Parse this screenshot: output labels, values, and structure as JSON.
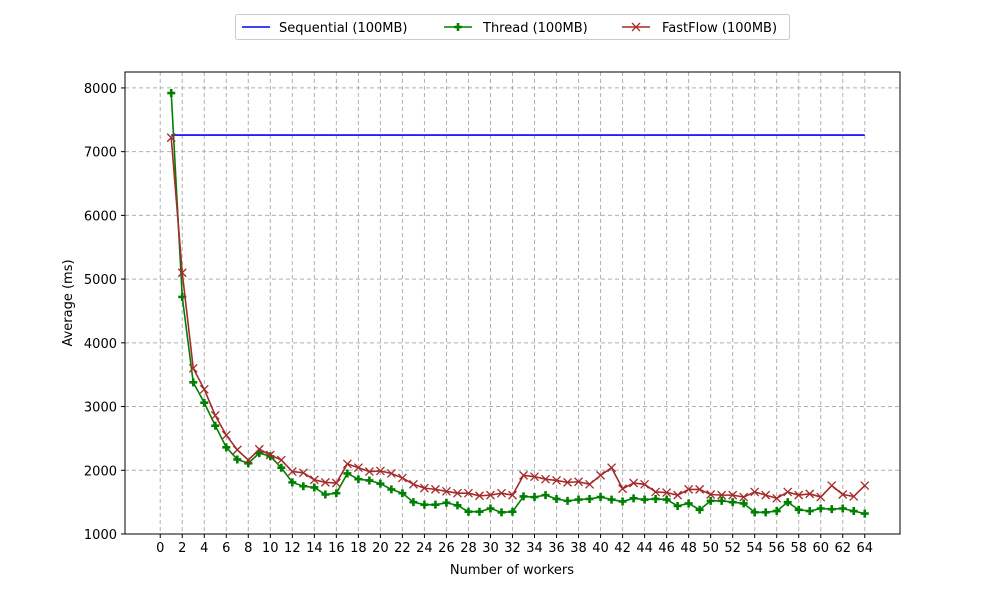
{
  "chart_data": {
    "type": "line",
    "title": "",
    "xlabel": "Number of workers",
    "ylabel": "Average (ms)",
    "xlim": [
      -3.2,
      67.2
    ],
    "ylim": [
      1000,
      8250
    ],
    "x_ticks": [
      0,
      2,
      4,
      6,
      8,
      10,
      12,
      14,
      16,
      18,
      20,
      22,
      24,
      26,
      28,
      30,
      32,
      34,
      36,
      38,
      40,
      42,
      44,
      46,
      48,
      50,
      52,
      54,
      56,
      58,
      60,
      62,
      64
    ],
    "y_ticks": [
      1000,
      2000,
      3000,
      4000,
      5000,
      6000,
      7000,
      8000
    ],
    "grid": true,
    "legend_position": "top-center, outside plot",
    "series": [
      {
        "name": "Sequential (100MB)",
        "color": "#0000ff",
        "marker": "none",
        "x": [
          1,
          64
        ],
        "values": [
          7260,
          7260
        ]
      },
      {
        "name": "Thread (100MB)",
        "color": "#008000",
        "marker": "plus",
        "x": [
          1,
          2,
          3,
          4,
          5,
          6,
          7,
          8,
          9,
          10,
          11,
          12,
          13,
          14,
          15,
          16,
          17,
          18,
          19,
          20,
          21,
          22,
          23,
          24,
          25,
          26,
          27,
          28,
          29,
          30,
          31,
          32,
          33,
          34,
          35,
          36,
          37,
          38,
          39,
          40,
          41,
          42,
          43,
          44,
          45,
          46,
          47,
          48,
          49,
          50,
          51,
          52,
          53,
          54,
          55,
          56,
          57,
          58,
          59,
          60,
          61,
          62,
          63,
          64
        ],
        "values": [
          7920,
          4720,
          3380,
          3060,
          2700,
          2360,
          2170,
          2110,
          2270,
          2220,
          2040,
          1810,
          1750,
          1730,
          1620,
          1640,
          1950,
          1860,
          1840,
          1790,
          1700,
          1640,
          1500,
          1460,
          1460,
          1490,
          1450,
          1350,
          1350,
          1400,
          1340,
          1350,
          1590,
          1580,
          1610,
          1550,
          1520,
          1540,
          1550,
          1580,
          1540,
          1510,
          1560,
          1540,
          1550,
          1540,
          1440,
          1480,
          1380,
          1520,
          1520,
          1500,
          1480,
          1340,
          1340,
          1360,
          1500,
          1380,
          1360,
          1400,
          1390,
          1400,
          1360,
          1320
        ]
      },
      {
        "name": "FastFlow (100MB)",
        "color": "#a52a2a",
        "marker": "x",
        "x": [
          1,
          2,
          3,
          4,
          5,
          6,
          7,
          8,
          9,
          10,
          11,
          12,
          13,
          14,
          15,
          16,
          17,
          18,
          19,
          20,
          21,
          22,
          23,
          24,
          25,
          26,
          27,
          28,
          29,
          30,
          31,
          32,
          33,
          34,
          35,
          36,
          37,
          38,
          39,
          40,
          41,
          42,
          43,
          44,
          45,
          46,
          47,
          48,
          49,
          50,
          51,
          52,
          53,
          54,
          55,
          56,
          57,
          58,
          59,
          60,
          61,
          62,
          63,
          64
        ],
        "values": [
          7220,
          5100,
          3600,
          3270,
          2860,
          2550,
          2320,
          2160,
          2330,
          2240,
          2160,
          1980,
          1960,
          1850,
          1810,
          1800,
          2100,
          2040,
          1980,
          1990,
          1950,
          1880,
          1780,
          1720,
          1700,
          1670,
          1640,
          1640,
          1600,
          1610,
          1640,
          1610,
          1920,
          1900,
          1860,
          1840,
          1810,
          1820,
          1780,
          1920,
          2040,
          1710,
          1800,
          1780,
          1660,
          1650,
          1610,
          1700,
          1700,
          1620,
          1610,
          1610,
          1580,
          1660,
          1610,
          1560,
          1660,
          1610,
          1630,
          1580,
          1760,
          1620,
          1590,
          1760
        ]
      }
    ]
  }
}
